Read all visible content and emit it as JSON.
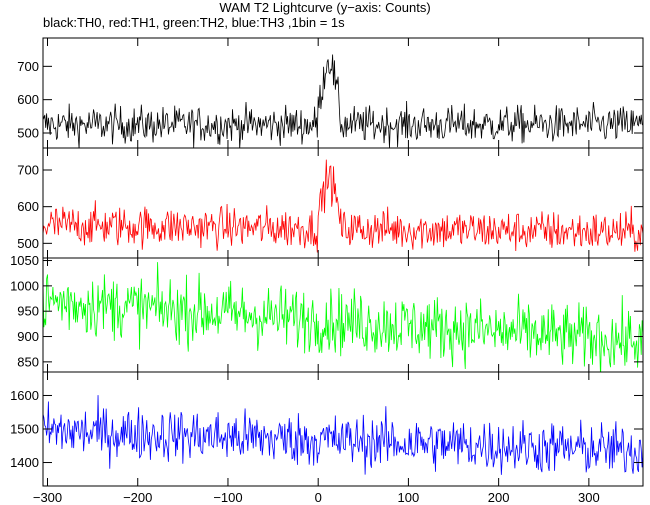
{
  "title": "WAM T2 Lightcurve (y−axis: Counts)",
  "subtitle": "black:TH0, red:TH1, green:TH2, blue:TH3 ,1bin = 1s",
  "chart_data": {
    "type": "line",
    "x_range": [
      -305,
      360
    ],
    "x_ticks": [
      -300,
      -200,
      -100,
      0,
      100,
      200,
      300
    ],
    "x_tick_labels": [
      "−300",
      "−200",
      "−100",
      "0",
      "100",
      "200",
      "300"
    ],
    "panels": [
      {
        "color": "#000000",
        "baseline": 525,
        "noise": 28,
        "ylim": [
          455,
          785
        ],
        "yticks": [
          500,
          600,
          700
        ],
        "ytick_labels": [
          "500",
          "600",
          "700"
        ],
        "flare": {
          "center": 12,
          "width": 8,
          "peak": 720
        },
        "trend": 0
      },
      {
        "color": "#ff0000",
        "baseline": 550,
        "noise": 28,
        "ylim": [
          460,
          760
        ],
        "yticks": [
          500,
          600,
          700
        ],
        "ytick_labels": [
          "500",
          "600",
          "700"
        ],
        "flare": {
          "center": 12,
          "width": 8,
          "peak": 690
        },
        "trend": -20
      },
      {
        "color": "#00ff00",
        "baseline": 970,
        "noise": 32,
        "ylim": [
          830,
          1055
        ],
        "yticks": [
          850,
          900,
          950,
          1000,
          1050
        ],
        "ytick_labels": [
          "850",
          "900",
          "950",
          "1000",
          "1050"
        ],
        "flare": null,
        "trend": -80
      },
      {
        "color": "#0000ff",
        "baseline": 1495,
        "noise": 40,
        "ylim": [
          1330,
          1670
        ],
        "yticks": [
          1400,
          1500,
          1600
        ],
        "ytick_labels": [
          "1400",
          "1500",
          "1600"
        ],
        "flare": null,
        "trend": -60
      }
    ]
  }
}
